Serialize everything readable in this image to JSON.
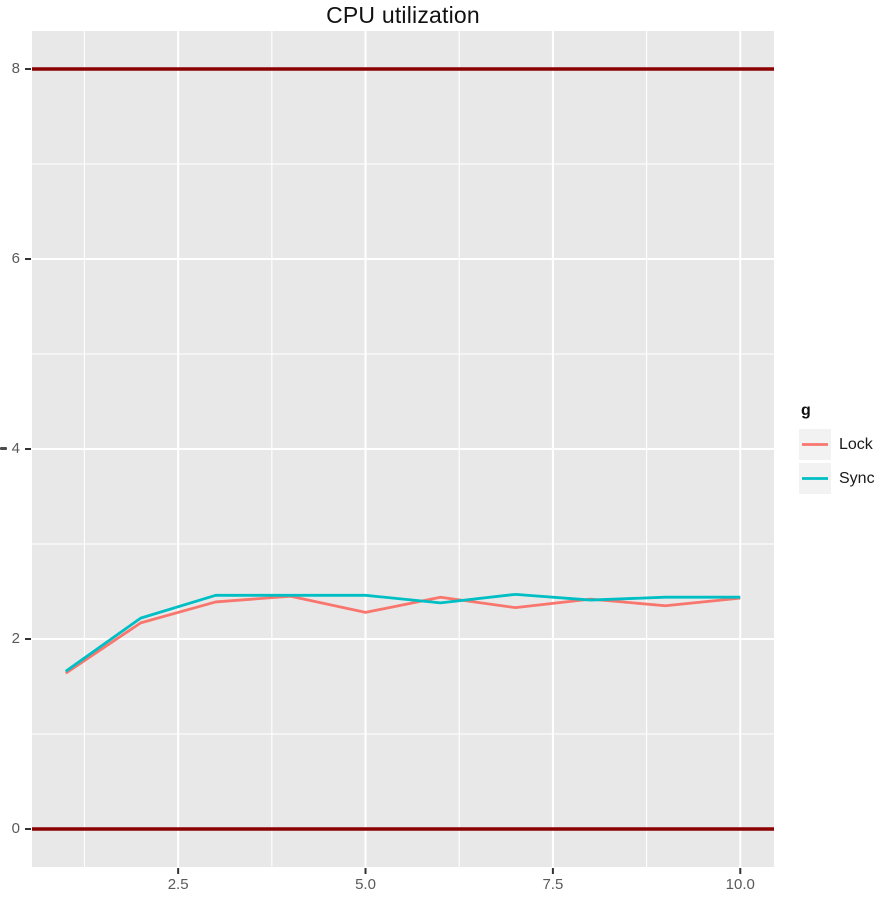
{
  "chart_data": {
    "type": "line",
    "title": "CPU utilization",
    "x": [
      1,
      2,
      3,
      4,
      5,
      6,
      7,
      8,
      9,
      10
    ],
    "series": [
      {
        "name": "Lock",
        "color": "#F8766D",
        "values": [
          1.64,
          2.17,
          2.39,
          2.45,
          2.28,
          2.44,
          2.33,
          2.42,
          2.35,
          2.43
        ]
      },
      {
        "name": "Sync",
        "color": "#00BFC4",
        "values": [
          1.66,
          2.22,
          2.46,
          2.46,
          2.46,
          2.38,
          2.47,
          2.41,
          2.44,
          2.44
        ]
      }
    ],
    "hlines": [
      {
        "y": 0,
        "color": "#8B0000"
      },
      {
        "y": 8,
        "color": "#8B0000"
      }
    ],
    "axes": {
      "xlim": [
        0.55,
        10.45
      ],
      "ylim": [
        -0.4,
        8.4
      ],
      "x_major": [
        2.5,
        5.0,
        7.5,
        10.0
      ],
      "x_labels": [
        "2.5",
        "5.0",
        "7.5",
        "10.0"
      ],
      "x_minor": [
        1.25,
        3.75,
        6.25,
        8.75
      ],
      "y_major": [
        0,
        2,
        4,
        6,
        8
      ],
      "y_labels": [
        "0",
        "2",
        "4",
        "6",
        "8"
      ],
      "y_minor": [
        1,
        3,
        5,
        7
      ],
      "grid": true,
      "xlabel": "",
      "ylabel": ""
    },
    "legend": {
      "title": "g",
      "position": "right",
      "entries": [
        {
          "label": "Lock"
        },
        {
          "label": "Sync"
        }
      ]
    }
  },
  "colors": {
    "panel_bg": "#E8E8E8",
    "grid": "#FFFFFF",
    "tick": "#333333",
    "tick_label": "#5A5A5A",
    "title_text": "#111111",
    "legend_key_bg": "#F2F2F2",
    "hline": "#8B0000"
  }
}
